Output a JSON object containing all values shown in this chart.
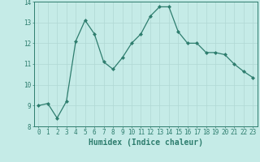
{
  "x": [
    0,
    1,
    2,
    3,
    4,
    5,
    6,
    7,
    8,
    9,
    10,
    11,
    12,
    13,
    14,
    15,
    16,
    17,
    18,
    19,
    20,
    21,
    22,
    23
  ],
  "y": [
    9.0,
    9.1,
    8.4,
    9.2,
    12.1,
    13.1,
    12.45,
    11.1,
    10.75,
    11.3,
    12.0,
    12.45,
    13.3,
    13.75,
    13.75,
    12.55,
    12.0,
    12.0,
    11.55,
    11.55,
    11.45,
    11.0,
    10.65,
    10.35
  ],
  "line_color": "#2e7d6e",
  "marker": "D",
  "marker_size": 2.0,
  "bg_color": "#c5ebe7",
  "grid_color": "#b0d8d4",
  "xlabel": "Humidex (Indice chaleur)",
  "xlim": [
    -0.5,
    23.5
  ],
  "ylim": [
    8,
    14
  ],
  "yticks": [
    8,
    9,
    10,
    11,
    12,
    13,
    14
  ],
  "xticks": [
    0,
    1,
    2,
    3,
    4,
    5,
    6,
    7,
    8,
    9,
    10,
    11,
    12,
    13,
    14,
    15,
    16,
    17,
    18,
    19,
    20,
    21,
    22,
    23
  ],
  "tick_color": "#2e7d6e",
  "label_fontsize": 5.5,
  "xlabel_fontsize": 7.0,
  "linewidth": 0.9
}
